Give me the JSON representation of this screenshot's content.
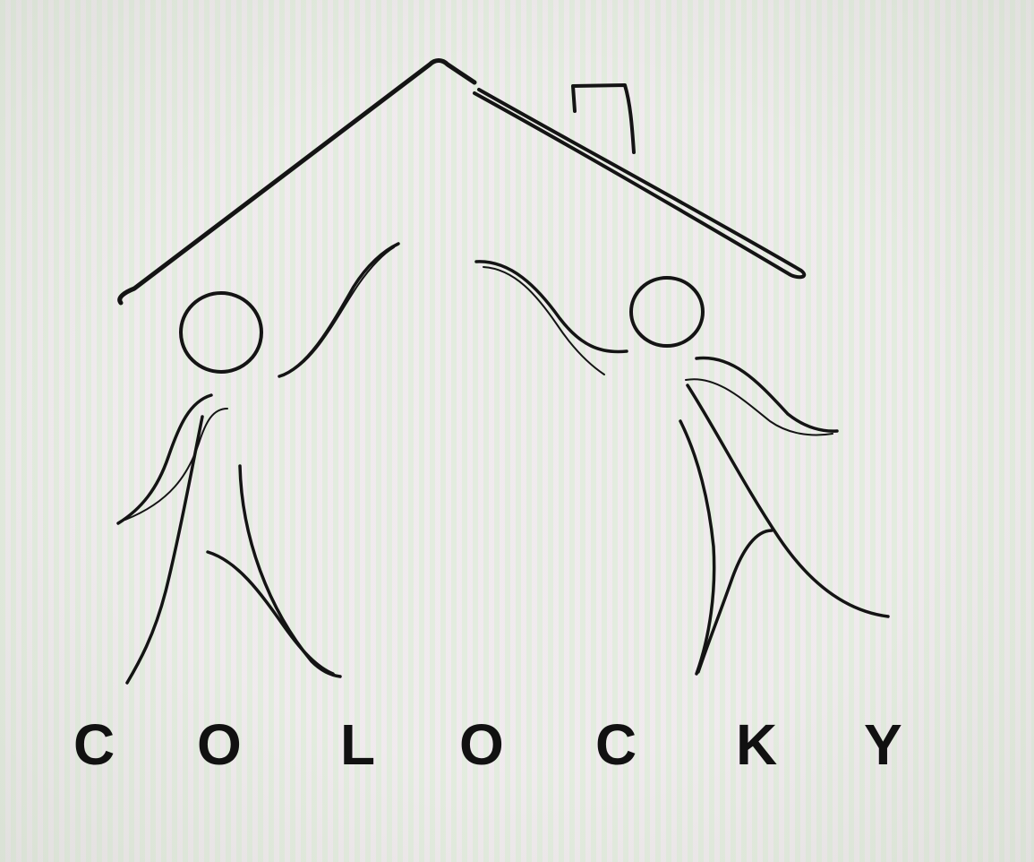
{
  "logo": {
    "wordmark": "C O L O C K Y",
    "letters": [
      "C",
      "O",
      "L",
      "O",
      "C",
      "K",
      "Y"
    ]
  },
  "colors": {
    "ink": "#141414",
    "background": "#eef0e8"
  },
  "icons": [
    "house-roof-icon",
    "chimney-icon",
    "stick-figure-left-icon",
    "stick-figure-right-icon"
  ]
}
